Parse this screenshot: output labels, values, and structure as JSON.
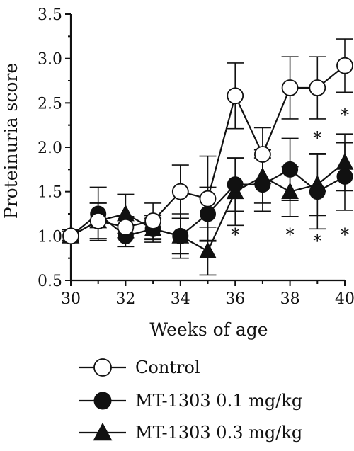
{
  "chart_data": {
    "type": "line",
    "title": "",
    "xlabel": "Weeks of age",
    "ylabel": "Proteinuria score",
    "xlim": [
      30,
      40
    ],
    "ylim": [
      0.5,
      3.5
    ],
    "x_ticks": [
      "30",
      "32",
      "34",
      "36",
      "38",
      "40"
    ],
    "y_ticks": [
      "0.5",
      "1.0",
      "1.5",
      "2.0",
      "2.5",
      "3.0",
      "3.5"
    ],
    "x": [
      30,
      31,
      32,
      33,
      34,
      35,
      36,
      37,
      38,
      39,
      40
    ],
    "series": [
      {
        "name": "Control",
        "marker": "open-circle",
        "values": [
          1.0,
          1.17,
          1.1,
          1.17,
          1.5,
          1.42,
          2.58,
          1.92,
          2.67,
          2.67,
          2.92
        ],
        "error_plus": [
          0.07,
          0.2,
          0.12,
          0.2,
          0.3,
          0.48,
          0.37,
          0.3,
          0.35,
          0.35,
          0.3
        ],
        "error_minus": [
          0.07,
          0.2,
          0.12,
          0.2,
          0.3,
          0.48,
          0.37,
          0.3,
          0.35,
          0.35,
          0.3
        ]
      },
      {
        "name": "MT-1303 0.1 mg/kg",
        "marker": "filled-circle",
        "values": [
          1.0,
          1.25,
          1.0,
          1.08,
          1.0,
          1.25,
          1.58,
          1.58,
          1.75,
          1.5,
          1.67
        ],
        "error_plus": [
          0.05,
          0.3,
          0.12,
          0.15,
          0.25,
          0.3,
          0.3,
          0.3,
          0.35,
          0.42,
          0.38
        ],
        "error_minus": [
          0.05,
          0.3,
          0.12,
          0.15,
          0.25,
          0.3,
          0.3,
          0.3,
          0.35,
          0.42,
          0.38
        ]
      },
      {
        "name": "MT-1303 0.3 mg/kg",
        "marker": "filled-triangle",
        "values": [
          1.0,
          1.17,
          1.25,
          1.08,
          1.0,
          0.83,
          1.5,
          1.67,
          1.5,
          1.58,
          1.83
        ],
        "error_plus": [
          0.05,
          0.2,
          0.22,
          0.12,
          0.2,
          0.27,
          0.38,
          0.3,
          0.28,
          0.35,
          0.32
        ],
        "error_minus": [
          0.05,
          0.2,
          0.22,
          0.12,
          0.2,
          0.27,
          0.38,
          0.3,
          0.28,
          0.35,
          0.32
        ]
      }
    ],
    "annotations": [
      {
        "text": "*",
        "x": 36,
        "y": 1.03
      },
      {
        "text": "*",
        "x": 38,
        "y": 1.03
      },
      {
        "text": "*",
        "x": 39,
        "y": 0.96
      },
      {
        "text": "*",
        "x": 39,
        "y": 2.12
      },
      {
        "text": "*",
        "x": 40,
        "y": 1.03
      },
      {
        "text": "*",
        "x": 40,
        "y": 2.38
      }
    ],
    "grid": false,
    "legend_position": "bottom"
  }
}
